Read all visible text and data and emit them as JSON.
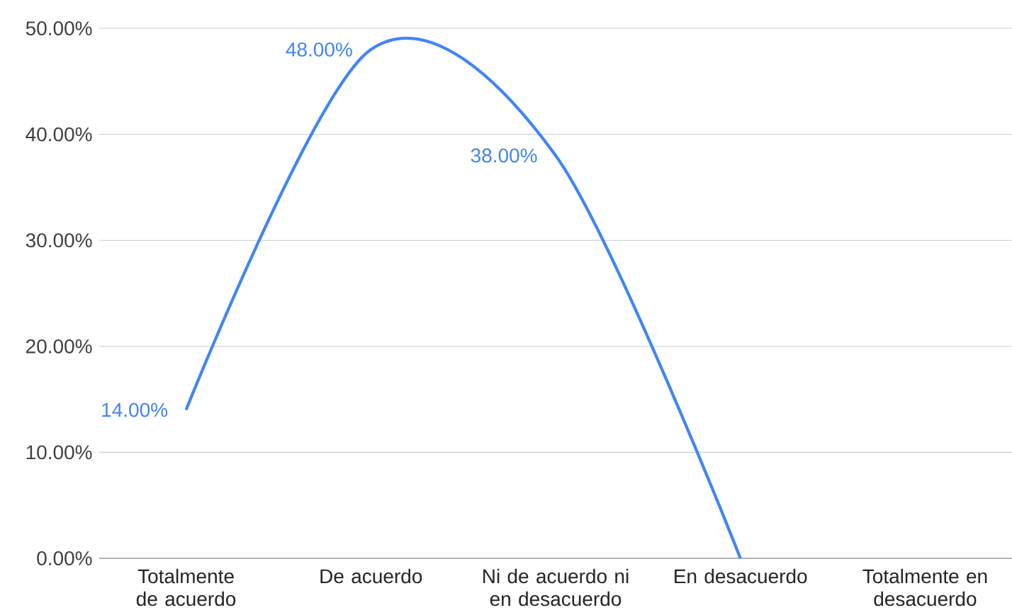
{
  "chart_data": {
    "type": "line",
    "categories": [
      "Totalmente de acuerdo",
      "De acuerdo",
      "Ni de acuerdo ni en desacuerdo",
      "En desacuerdo",
      "Totalmente en desacuerdo"
    ],
    "values": [
      14,
      48,
      38,
      0,
      null
    ],
    "value_labels": [
      "14.00%",
      "48.00%",
      "38.00%",
      null,
      null
    ],
    "color": "#4285f4",
    "ylim": [
      0,
      50
    ],
    "yticks": [
      {
        "value": 0,
        "label": "0.00%"
      },
      {
        "value": 10,
        "label": "10.00%"
      },
      {
        "value": 20,
        "label": "20.00%"
      },
      {
        "value": 30,
        "label": "30.00%"
      },
      {
        "value": 40,
        "label": "40.00%"
      },
      {
        "value": 50,
        "label": "50.00%"
      }
    ],
    "grid": "y",
    "marker": "none",
    "line_style": "solid"
  }
}
